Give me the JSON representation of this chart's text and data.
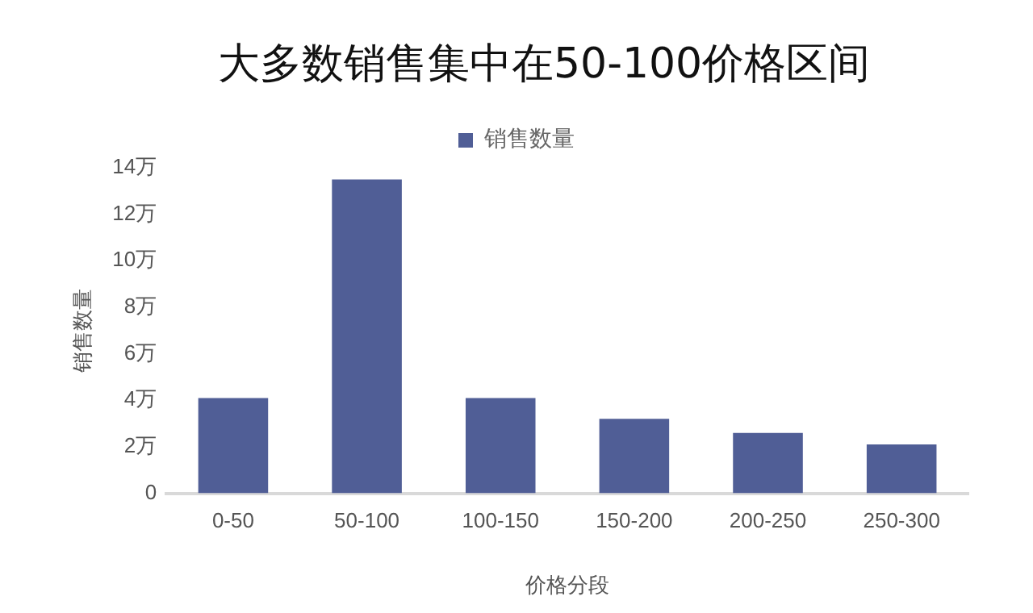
{
  "chart_data": {
    "type": "bar",
    "title": "大多数销售集中在50-100价格区间",
    "xlabel": "价格分段",
    "ylabel": "销售数量",
    "categories": [
      "0-50",
      "50-100",
      "100-150",
      "150-200",
      "200-250",
      "250-300"
    ],
    "series": [
      {
        "name": "销售数量",
        "color": "#505e96",
        "values": [
          4.1,
          13.5,
          4.1,
          3.2,
          2.6,
          2.1
        ]
      }
    ],
    "ylim": [
      0,
      14
    ],
    "yticks": [
      0,
      {
        "value": 2,
        "label": "2万"
      },
      {
        "value": 4,
        "label": "4万"
      },
      {
        "value": 6,
        "label": "6万"
      },
      {
        "value": 8,
        "label": "8万"
      },
      {
        "value": 10,
        "label": "10万"
      },
      {
        "value": 12,
        "label": "12万"
      },
      {
        "value": 14,
        "label": "14万"
      }
    ],
    "grid": false,
    "legend": "top"
  }
}
